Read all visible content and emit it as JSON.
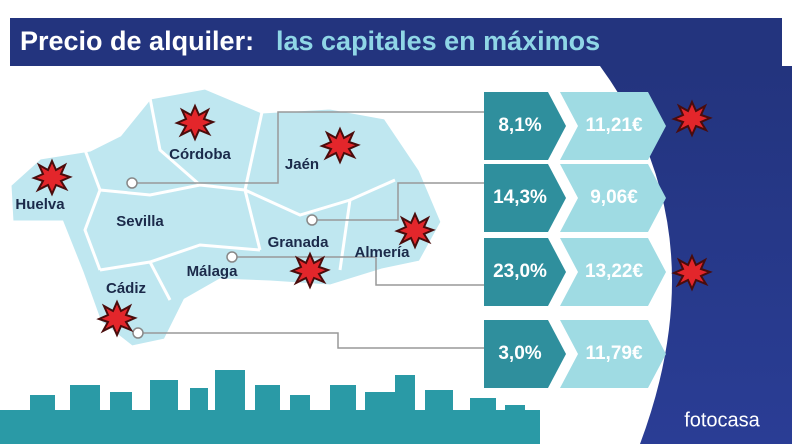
{
  "header": {
    "title": "Precio de alquiler:",
    "highlight": "las capitales en máximos"
  },
  "map": {
    "provinces": [
      "Huelva",
      "Sevilla",
      "Córdoba",
      "Jaén",
      "Cádiz",
      "Málaga",
      "Granada",
      "Almería"
    ]
  },
  "rows": [
    {
      "change": "8,1%",
      "price": "11,21€"
    },
    {
      "change": "14,3%",
      "price": "9,06€"
    },
    {
      "change": "23,0%",
      "price": "13,22€"
    },
    {
      "change": "3,0%",
      "price": "11,79€"
    }
  ],
  "brand": "fotocasa"
}
